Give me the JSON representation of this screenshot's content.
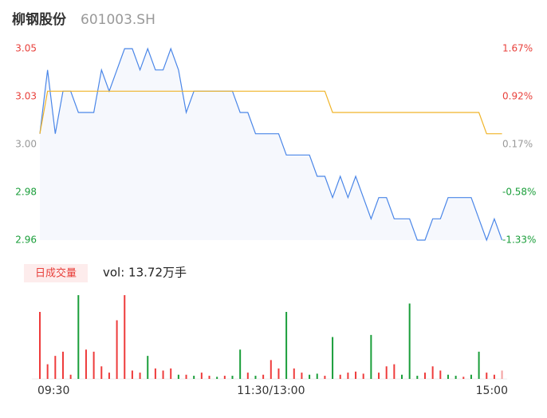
{
  "header": {
    "name": "柳钢股份",
    "code": "601003.SH"
  },
  "chart_data": [
    {
      "type": "line",
      "x": [
        0,
        4,
        8,
        12,
        16,
        20,
        24,
        28,
        32,
        36,
        40,
        44,
        48,
        52,
        56,
        60,
        64,
        68,
        72,
        76,
        80,
        84,
        88,
        92,
        96,
        100,
        104,
        108,
        112,
        116,
        120,
        124,
        128,
        132,
        136,
        140,
        144,
        148,
        152,
        156,
        160,
        164,
        168,
        172,
        176,
        180,
        184,
        188,
        192,
        196,
        200,
        204,
        208,
        212,
        216,
        220,
        224,
        228,
        232,
        236,
        240
      ],
      "xlim": [
        0,
        241
      ],
      "xticks": [
        {
          "value": 0,
          "label": "09:30"
        },
        {
          "value": 120,
          "label": "11:30/13:00"
        },
        {
          "value": 241,
          "label": "15:00"
        }
      ],
      "ylim": [
        2.96,
        3.05
      ],
      "yticks": [
        {
          "value": 3.05,
          "label": "3.05"
        },
        {
          "value": 3.0275,
          "label": "3.03"
        },
        {
          "value": 3.005,
          "label": "3.00"
        },
        {
          "value": 2.9825,
          "label": "2.98"
        },
        {
          "value": 2.96,
          "label": "2.96"
        }
      ],
      "y2lim": [
        -1.33,
        1.67
      ],
      "y2ticks": [
        {
          "value": 1.67,
          "label": "1.67%"
        },
        {
          "value": 0.92,
          "label": "0.92%"
        },
        {
          "value": 0.17,
          "label": "0.17%"
        },
        {
          "value": -0.58,
          "label": "-0.58%"
        },
        {
          "value": -1.33,
          "label": "-1.33%"
        }
      ],
      "tick_colors": [
        "#e8413c",
        "#e8413c",
        "#999999",
        "#1a9e3a",
        "#1a9e3a"
      ],
      "area_color": "#f6f8fd",
      "series": [
        {
          "color": "#4a86e8",
          "values": [
            3.01,
            3.04,
            3.01,
            3.03,
            3.03,
            3.02,
            3.02,
            3.02,
            3.04,
            3.03,
            3.04,
            3.05,
            3.05,
            3.04,
            3.05,
            3.04,
            3.04,
            3.05,
            3.04,
            3.02,
            3.03,
            3.03,
            3.03,
            3.03,
            3.03,
            3.03,
            3.02,
            3.02,
            3.01,
            3.01,
            3.01,
            3.01,
            3.0,
            3.0,
            3.0,
            3.0,
            2.99,
            2.99,
            2.98,
            2.99,
            2.98,
            2.99,
            2.98,
            2.97,
            2.98,
            2.98,
            2.97,
            2.97,
            2.97,
            2.96,
            2.96,
            2.97,
            2.97,
            2.98,
            2.98,
            2.98,
            2.98,
            2.97,
            2.96,
            2.97,
            2.96
          ]
        },
        {
          "color": "#f0b429",
          "values": [
            3.01,
            3.03,
            3.03,
            3.03,
            3.03,
            3.03,
            3.03,
            3.03,
            3.03,
            3.03,
            3.03,
            3.03,
            3.03,
            3.03,
            3.03,
            3.03,
            3.03,
            3.03,
            3.03,
            3.03,
            3.03,
            3.03,
            3.03,
            3.03,
            3.03,
            3.03,
            3.03,
            3.03,
            3.03,
            3.03,
            3.03,
            3.03,
            3.03,
            3.03,
            3.03,
            3.03,
            3.03,
            3.03,
            3.02,
            3.02,
            3.02,
            3.02,
            3.02,
            3.02,
            3.02,
            3.02,
            3.02,
            3.02,
            3.02,
            3.02,
            3.02,
            3.02,
            3.02,
            3.02,
            3.02,
            3.02,
            3.02,
            3.02,
            3.01,
            3.01,
            3.01
          ]
        }
      ]
    },
    {
      "type": "bar",
      "title": "日成交量",
      "subtitle": "vol: 13.72万手",
      "x": [
        0,
        4,
        8,
        12,
        16,
        20,
        24,
        28,
        32,
        36,
        40,
        44,
        48,
        52,
        56,
        60,
        64,
        68,
        72,
        76,
        80,
        84,
        88,
        92,
        96,
        100,
        104,
        108,
        112,
        116,
        120,
        124,
        128,
        132,
        136,
        140,
        144,
        148,
        152,
        156,
        160,
        164,
        168,
        172,
        176,
        180,
        184,
        188,
        192,
        196,
        200,
        204,
        208,
        212,
        216,
        220,
        224,
        228,
        232,
        236,
        240
      ],
      "xlim": [
        0,
        241
      ],
      "ylim": [
        0,
        4000
      ],
      "values": [
        3200,
        700,
        1100,
        1300,
        200,
        4000,
        1400,
        1300,
        600,
        300,
        2800,
        4000,
        400,
        300,
        1100,
        500,
        400,
        500,
        200,
        200,
        150,
        300,
        150,
        100,
        150,
        150,
        1400,
        300,
        150,
        200,
        900,
        500,
        3200,
        500,
        300,
        200,
        250,
        150,
        2000,
        200,
        300,
        350,
        250,
        2100,
        300,
        600,
        700,
        200,
        3600,
        150,
        300,
        600,
        400,
        200,
        150,
        100,
        200,
        1300,
        300,
        200,
        400
      ],
      "colors": [
        "#ee3b3b",
        "#ee3b3b",
        "#ee3b3b",
        "#ee3b3b",
        "#ee3b3b",
        "#1a9e3a",
        "#ee3b3b",
        "#ee3b3b",
        "#ee3b3b",
        "#ee3b3b",
        "#ee3b3b",
        "#ee3b3b",
        "#ee3b3b",
        "#ee3b3b",
        "#1a9e3a",
        "#ee3b3b",
        "#ee3b3b",
        "#ee3b3b",
        "#1a9e3a",
        "#ee3b3b",
        "#1a9e3a",
        "#ee3b3b",
        "#ee3b3b",
        "#1a9e3a",
        "#ee3b3b",
        "#1a9e3a",
        "#1a9e3a",
        "#ee3b3b",
        "#1a9e3a",
        "#ee3b3b",
        "#ee3b3b",
        "#ee3b3b",
        "#1a9e3a",
        "#ee3b3b",
        "#ee3b3b",
        "#1a9e3a",
        "#1a9e3a",
        "#ee3b3b",
        "#1a9e3a",
        "#ee3b3b",
        "#ee3b3b",
        "#ee3b3b",
        "#ee3b3b",
        "#1a9e3a",
        "#ee3b3b",
        "#ee3b3b",
        "#ee3b3b",
        "#1a9e3a",
        "#1a9e3a",
        "#1a9e3a",
        "#ee3b3b",
        "#ee3b3b",
        "#ee3b3b",
        "#1a9e3a",
        "#1a9e3a",
        "#ee3b3b",
        "#1a9e3a",
        "#1a9e3a",
        "#ee3b3b",
        "#ee3b3b",
        "#f4a0a0"
      ]
    }
  ]
}
